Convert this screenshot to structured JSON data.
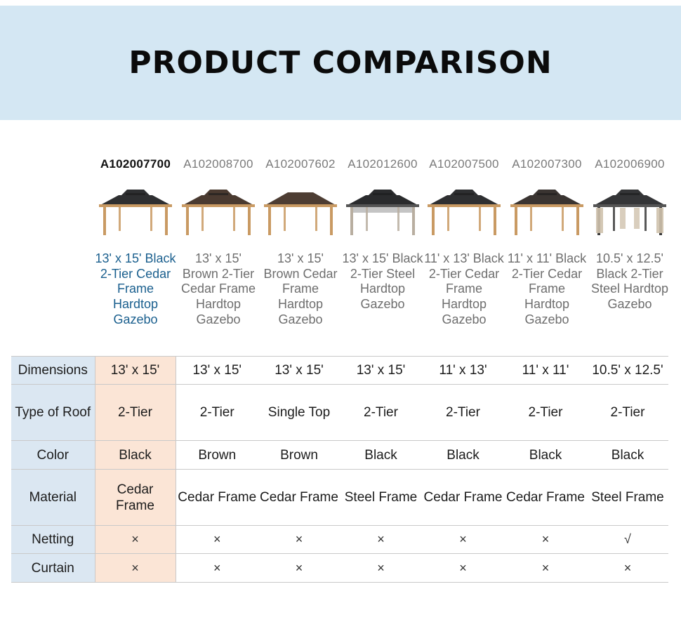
{
  "header": {
    "title": "PRODUCT COMPARISON"
  },
  "products": [
    {
      "sku": "A102007700",
      "name": "13' x 15' Black 2-Tier Cedar Frame Hardtop Gazebo",
      "active": true,
      "roof_color": "#2e2f31",
      "frame": "cedar",
      "tiers": 2
    },
    {
      "sku": "A102008700",
      "name": "13' x 15' Brown 2-Tier Cedar Frame Hardtop Gazebo",
      "active": false,
      "roof_color": "#4a3a30",
      "frame": "cedar",
      "tiers": 2
    },
    {
      "sku": "A102007602",
      "name": "13' x 15' Brown Cedar Frame Hardtop Gazebo",
      "active": false,
      "roof_color": "#4d3d33",
      "frame": "cedar",
      "tiers": 1
    },
    {
      "sku": "A102012600",
      "name": "13' x 15' Black 2-Tier Steel Hardtop Gazebo",
      "active": false,
      "roof_color": "#2a2b2d",
      "frame": "steel-light",
      "tiers": 2
    },
    {
      "sku": "A102007500",
      "name": "11' x 13' Black 2-Tier Cedar Frame Hardtop Gazebo",
      "active": false,
      "roof_color": "#2e2f31",
      "frame": "cedar",
      "tiers": 2
    },
    {
      "sku": "A102007300",
      "name": "11' x 11' Black 2-Tier Cedar Frame Hardtop Gazebo",
      "active": false,
      "roof_color": "#3a3431",
      "frame": "cedar",
      "tiers": 2
    },
    {
      "sku": "A102006900",
      "name": "10.5' x 12.5' Black 2-Tier Steel Hardtop Gazebo",
      "active": false,
      "roof_color": "#343537",
      "frame": "steel-dark",
      "tiers": 2
    }
  ],
  "specs": [
    {
      "key": "dim",
      "label": "Dimensions",
      "values": [
        "13' x 15'",
        "13' x 15'",
        "13' x 15'",
        "13' x 15'",
        "11' x 13'",
        "11' x 11'",
        "10.5' x 12.5'"
      ]
    },
    {
      "key": "roof",
      "label": "Type of Roof",
      "values": [
        "2-Tier",
        "2-Tier",
        "Single Top",
        "2-Tier",
        "2-Tier",
        "2-Tier",
        "2-Tier"
      ]
    },
    {
      "key": "color",
      "label": "Color",
      "values": [
        "Black",
        "Brown",
        "Brown",
        "Black",
        "Black",
        "Black",
        "Black"
      ]
    },
    {
      "key": "mat",
      "label": "Material",
      "values": [
        "Cedar Frame",
        "Cedar Frame",
        "Cedar Frame",
        "Steel Frame",
        "Cedar Frame",
        "Cedar Frame",
        "Steel Frame"
      ]
    },
    {
      "key": "net",
      "label": "Netting",
      "values": [
        "×",
        "×",
        "×",
        "×",
        "×",
        "×",
        "√"
      ]
    },
    {
      "key": "cur",
      "label": "Curtain",
      "values": [
        "×",
        "×",
        "×",
        "×",
        "×",
        "×",
        "×"
      ]
    }
  ],
  "colors": {
    "banner_bg": "#d4e7f3",
    "label_bg": "#dbe7f2",
    "highlight_bg": "#fbe5d6",
    "active_name": "#1a5f8e",
    "cedar": "#c99a63"
  }
}
